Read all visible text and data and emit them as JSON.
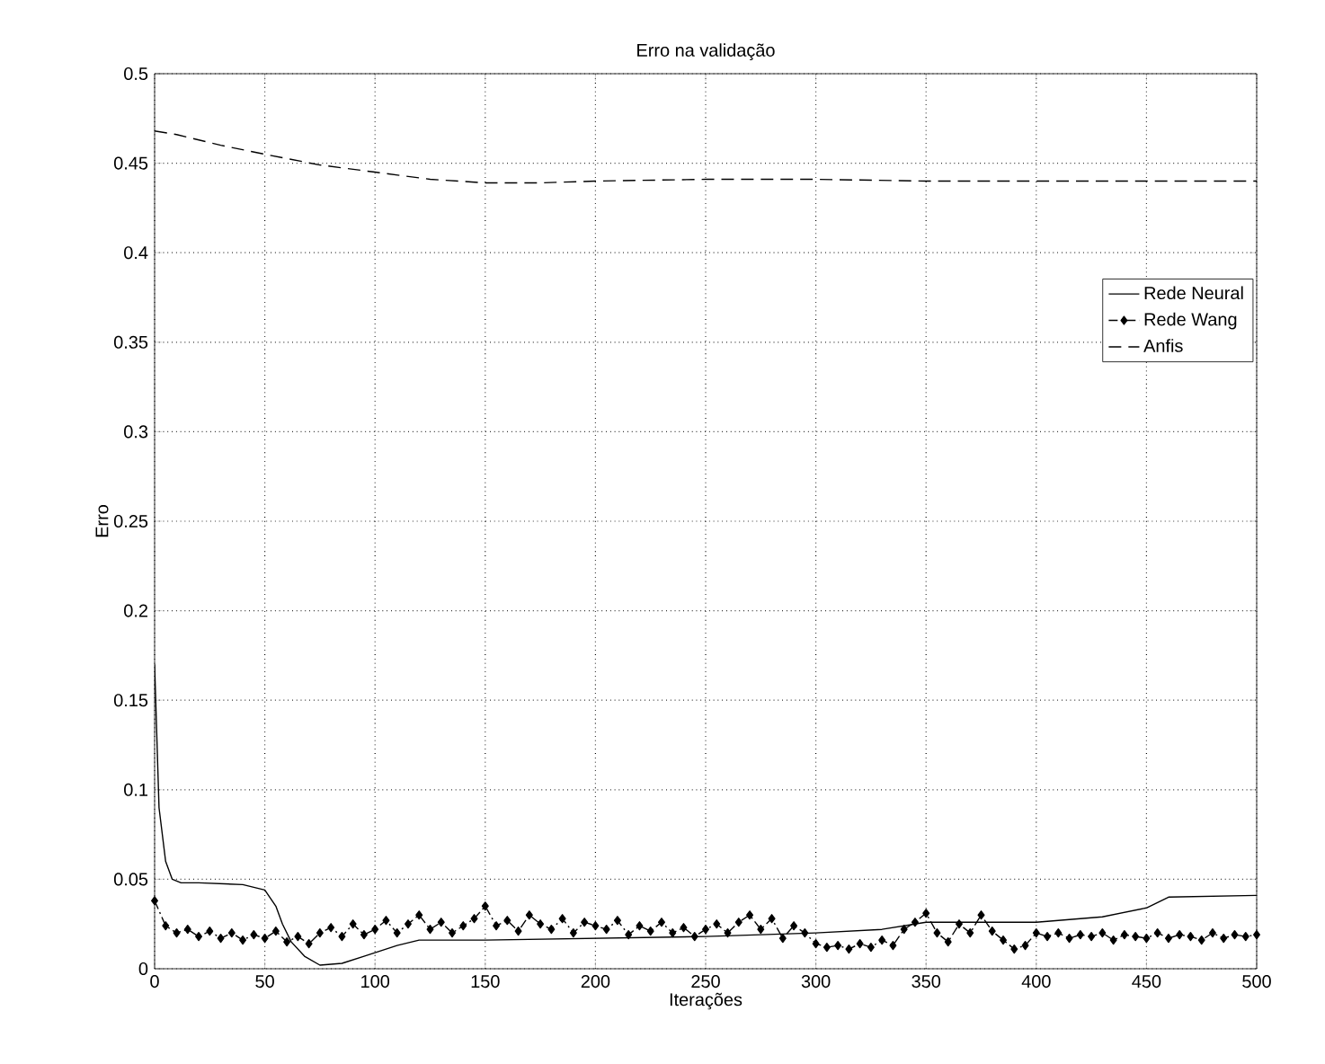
{
  "chart_data": {
    "type": "line",
    "title": "Erro na validação",
    "xlabel": "Iterações",
    "ylabel": "Erro",
    "xlim": [
      0,
      500
    ],
    "xticks": [
      0,
      50,
      100,
      150,
      200,
      250,
      300,
      350,
      400,
      450,
      500
    ],
    "ylim": [
      0,
      0.5
    ],
    "yticks": [
      0,
      0.05,
      0.1,
      0.15,
      0.2,
      0.25,
      0.3,
      0.35,
      0.4,
      0.45,
      0.5
    ],
    "grid": true,
    "legend": "right",
    "series": [
      {
        "name": "Rede Neural",
        "color": "#000000",
        "line_style": "solid",
        "marker": "none",
        "x": [
          0,
          2,
          5,
          8,
          12,
          20,
          40,
          50,
          55,
          58,
          62,
          68,
          75,
          85,
          95,
          100,
          110,
          120,
          150,
          200,
          250,
          300,
          330,
          350,
          400,
          430,
          450,
          460,
          500
        ],
        "values": [
          0.17,
          0.09,
          0.06,
          0.05,
          0.048,
          0.048,
          0.047,
          0.044,
          0.035,
          0.025,
          0.015,
          0.007,
          0.002,
          0.003,
          0.007,
          0.009,
          0.013,
          0.016,
          0.016,
          0.017,
          0.018,
          0.02,
          0.022,
          0.026,
          0.026,
          0.029,
          0.034,
          0.04,
          0.041
        ]
      },
      {
        "name": "Rede Wang",
        "color": "#000000",
        "line_style": "dashdot",
        "marker": "diamond",
        "x": [
          0,
          5,
          10,
          15,
          20,
          25,
          30,
          35,
          40,
          45,
          50,
          55,
          60,
          65,
          70,
          75,
          80,
          85,
          90,
          95,
          100,
          105,
          110,
          115,
          120,
          125,
          130,
          135,
          140,
          145,
          150,
          155,
          160,
          165,
          170,
          175,
          180,
          185,
          190,
          195,
          200,
          205,
          210,
          215,
          220,
          225,
          230,
          235,
          240,
          245,
          250,
          255,
          260,
          265,
          270,
          275,
          280,
          285,
          290,
          295,
          300,
          305,
          310,
          315,
          320,
          325,
          330,
          335,
          340,
          345,
          350,
          355,
          360,
          365,
          370,
          375,
          380,
          385,
          390,
          395,
          400,
          405,
          410,
          415,
          420,
          425,
          430,
          435,
          440,
          445,
          450,
          455,
          460,
          465,
          470,
          475,
          480,
          485,
          490,
          495,
          500
        ],
        "values": [
          0.038,
          0.024,
          0.02,
          0.022,
          0.018,
          0.021,
          0.017,
          0.02,
          0.016,
          0.019,
          0.017,
          0.021,
          0.015,
          0.018,
          0.014,
          0.02,
          0.023,
          0.018,
          0.025,
          0.019,
          0.022,
          0.027,
          0.02,
          0.025,
          0.03,
          0.022,
          0.026,
          0.02,
          0.024,
          0.028,
          0.035,
          0.024,
          0.027,
          0.021,
          0.03,
          0.025,
          0.022,
          0.028,
          0.02,
          0.026,
          0.024,
          0.022,
          0.027,
          0.019,
          0.024,
          0.021,
          0.026,
          0.02,
          0.023,
          0.018,
          0.022,
          0.025,
          0.02,
          0.026,
          0.03,
          0.022,
          0.028,
          0.017,
          0.024,
          0.02,
          0.014,
          0.012,
          0.013,
          0.011,
          0.014,
          0.012,
          0.016,
          0.013,
          0.022,
          0.026,
          0.031,
          0.02,
          0.015,
          0.025,
          0.02,
          0.03,
          0.021,
          0.016,
          0.011,
          0.013,
          0.02,
          0.018,
          0.02,
          0.017,
          0.019,
          0.018,
          0.02,
          0.016,
          0.019,
          0.018,
          0.017,
          0.02,
          0.017,
          0.019,
          0.018,
          0.016,
          0.02,
          0.017,
          0.019,
          0.018,
          0.019
        ]
      },
      {
        "name": "Anfis",
        "color": "#000000",
        "line_style": "dashed",
        "marker": "none",
        "x": [
          0,
          10,
          30,
          50,
          75,
          100,
          125,
          150,
          175,
          200,
          250,
          300,
          350,
          400,
          450,
          500
        ],
        "values": [
          0.468,
          0.466,
          0.46,
          0.455,
          0.449,
          0.445,
          0.441,
          0.439,
          0.439,
          0.44,
          0.441,
          0.441,
          0.44,
          0.44,
          0.44,
          0.44
        ]
      }
    ]
  }
}
